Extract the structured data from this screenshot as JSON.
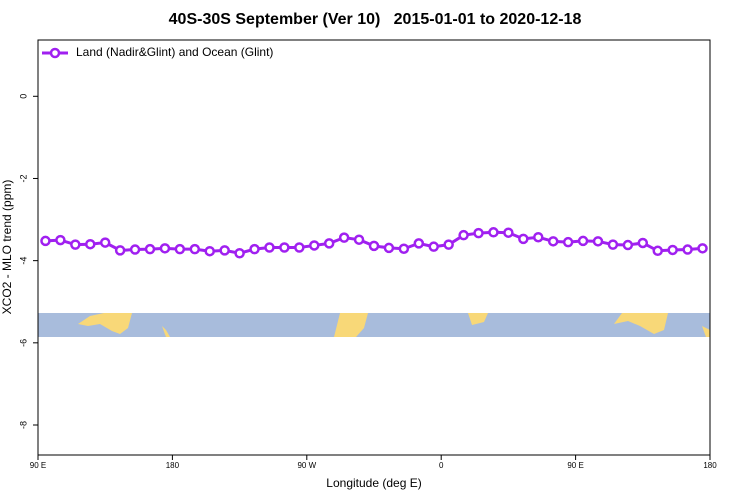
{
  "chart_data": {
    "type": "line",
    "title": "40S-30S September (Ver 10)   2015-01-01 to 2020-12-18",
    "x_label": "Longitude (deg E)",
    "y_label": "XCO2 - MLO trend (ppm)",
    "x": [
      95,
      105,
      115,
      125,
      135,
      145,
      155,
      165,
      175,
      185,
      195,
      205,
      215,
      225,
      235,
      245,
      255,
      265,
      275,
      285,
      295,
      305,
      315,
      325,
      335,
      345,
      355,
      365,
      375,
      385,
      395,
      405,
      415,
      425,
      435,
      445,
      455,
      465,
      475,
      485,
      495,
      505,
      515,
      525,
      535
    ],
    "series": [
      {
        "name": "Land (Nadir&Glint) and Ocean (Glint)",
        "color": "#a020f0",
        "values": [
          -3.52,
          -3.5,
          -3.61,
          -3.6,
          -3.56,
          -3.75,
          -3.73,
          -3.72,
          -3.7,
          -3.72,
          -3.72,
          -3.77,
          -3.75,
          -3.82,
          -3.72,
          -3.68,
          -3.68,
          -3.68,
          -3.63,
          -3.58,
          -3.44,
          -3.49,
          -3.64,
          -3.69,
          -3.71,
          -3.58,
          -3.66,
          -3.61,
          -3.38,
          -3.33,
          -3.31,
          -3.32,
          -3.47,
          -3.43,
          -3.53,
          -3.55,
          -3.52,
          -3.53,
          -3.61,
          -3.62,
          -3.57,
          -3.76,
          -3.74,
          -3.73,
          -3.7
        ]
      }
    ],
    "xlim": [
      90,
      540
    ],
    "xticks": [
      {
        "value": 90,
        "label": "90 E"
      },
      180,
      {
        "value": 270,
        "label": "90 W"
      },
      {
        "value": 360,
        "label": "0"
      },
      {
        "value": 450,
        "label": "90 E"
      },
      {
        "value": 540,
        "label": "180"
      }
    ],
    "ylim": [
      -8.73,
      1.37
    ],
    "yticks": [
      -8,
      -6,
      -4,
      -2,
      0
    ],
    "legend": "top-left"
  }
}
